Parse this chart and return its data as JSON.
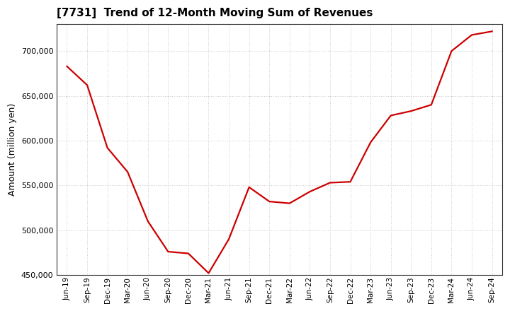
{
  "title": "[7731]  Trend of 12-Month Moving Sum of Revenues",
  "ylabel": "Amount (million yen)",
  "line_color": "#cc0000",
  "background_color": "#ffffff",
  "plot_bg_color": "#ffffff",
  "grid_color": "#bbbbbb",
  "ylim": [
    450000,
    730000
  ],
  "yticks": [
    450000,
    500000,
    550000,
    600000,
    650000,
    700000
  ],
  "x_labels": [
    "Jun-19",
    "Sep-19",
    "Dec-19",
    "Mar-20",
    "Jun-20",
    "Sep-20",
    "Dec-20",
    "Mar-21",
    "Jun-21",
    "Sep-21",
    "Dec-21",
    "Mar-22",
    "Jun-22",
    "Sep-22",
    "Dec-22",
    "Mar-23",
    "Jun-23",
    "Sep-23",
    "Dec-23",
    "Mar-24",
    "Jun-24",
    "Sep-24"
  ],
  "data_x": [
    0,
    1,
    2,
    3,
    4,
    5,
    6,
    7,
    8,
    9,
    10,
    11,
    12,
    13,
    14,
    15,
    16,
    17,
    18,
    19,
    20,
    21
  ],
  "data_y": [
    683000,
    662000,
    592000,
    565000,
    510000,
    476000,
    474000,
    452000,
    490000,
    548000,
    532000,
    530000,
    543000,
    553000,
    554000,
    598000,
    628000,
    633000,
    640000,
    700000,
    718000,
    722000
  ],
  "figsize": [
    7.2,
    4.4
  ],
  "dpi": 100,
  "title_fontsize": 11,
  "ylabel_fontsize": 9,
  "tick_fontsize": 8,
  "xtick_fontsize": 7.5
}
